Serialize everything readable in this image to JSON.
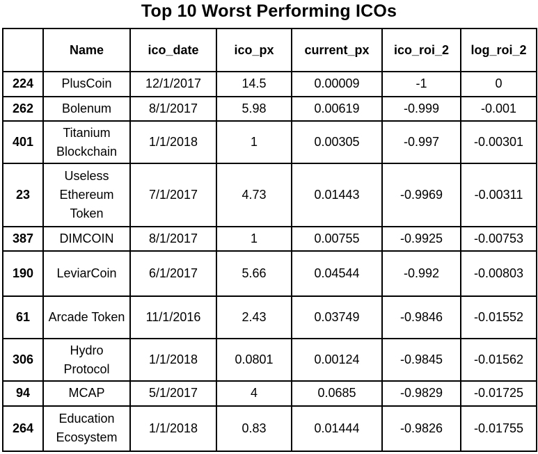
{
  "title": "Top 10 Worst Performing ICOs",
  "table": {
    "headers": [
      "",
      "Name",
      "ico_date",
      "ico_px",
      "current_px",
      "ico_roi_2",
      "log_roi_2"
    ],
    "rows": [
      {
        "index": "224",
        "name": "PlusCoin",
        "ico_date": "12/1/2017",
        "ico_px": "14.5",
        "current_px": "0.00009",
        "ico_roi_2": "-1",
        "log_roi_2": "0"
      },
      {
        "index": "262",
        "name": "Bolenum",
        "ico_date": "8/1/2017",
        "ico_px": "5.98",
        "current_px": "0.00619",
        "ico_roi_2": "-0.999",
        "log_roi_2": "-0.001"
      },
      {
        "index": "401",
        "name": "Titanium Blockchain",
        "ico_date": "1/1/2018",
        "ico_px": "1",
        "current_px": "0.00305",
        "ico_roi_2": "-0.997",
        "log_roi_2": "-0.00301"
      },
      {
        "index": "23",
        "name": "Useless Ethereum Token",
        "ico_date": "7/1/2017",
        "ico_px": "4.73",
        "current_px": "0.01443",
        "ico_roi_2": "-0.9969",
        "log_roi_2": "-0.00311"
      },
      {
        "index": "387",
        "name": "DIMCOIN",
        "ico_date": "8/1/2017",
        "ico_px": "1",
        "current_px": "0.00755",
        "ico_roi_2": "-0.9925",
        "log_roi_2": "-0.00753"
      },
      {
        "index": "190",
        "name": "LeviarCoin",
        "ico_date": "6/1/2017",
        "ico_px": "5.66",
        "current_px": "0.04544",
        "ico_roi_2": "-0.992",
        "log_roi_2": "-0.00803"
      },
      {
        "index": "61",
        "name": "Arcade Token",
        "ico_date": "11/1/2016",
        "ico_px": "2.43",
        "current_px": "0.03749",
        "ico_roi_2": "-0.9846",
        "log_roi_2": "-0.01552"
      },
      {
        "index": "306",
        "name": "Hydro Protocol",
        "ico_date": "1/1/2018",
        "ico_px": "0.0801",
        "current_px": "0.00124",
        "ico_roi_2": "-0.9845",
        "log_roi_2": "-0.01562"
      },
      {
        "index": "94",
        "name": "MCAP",
        "ico_date": "5/1/2017",
        "ico_px": "4",
        "current_px": "0.0685",
        "ico_roi_2": "-0.9829",
        "log_roi_2": "-0.01725"
      },
      {
        "index": "264",
        "name": "Education Ecosystem",
        "ico_date": "1/1/2018",
        "ico_px": "0.83",
        "current_px": "0.01444",
        "ico_roi_2": "-0.9826",
        "log_roi_2": "-0.01755"
      }
    ]
  }
}
